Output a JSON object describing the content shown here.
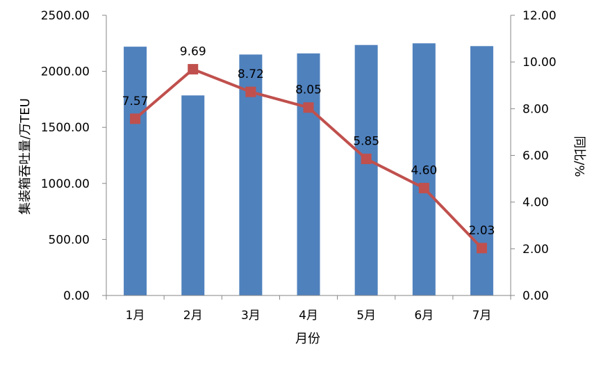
{
  "chart_data": {
    "type": "bar+line",
    "categories": [
      "1月",
      "2月",
      "3月",
      "4月",
      "5月",
      "6月",
      "7月"
    ],
    "series": [
      {
        "type": "bar",
        "axis": "left",
        "color": "#4F81BD",
        "values": [
          2220,
          1785,
          2150,
          2160,
          2235,
          2250,
          2225
        ]
      },
      {
        "type": "line",
        "axis": "right",
        "color": "#C0504D",
        "marker": "square",
        "values": [
          7.57,
          9.69,
          8.72,
          8.05,
          5.85,
          4.6,
          2.03
        ],
        "data_labels": [
          "7.57",
          "9.69",
          "8.72",
          "8.05",
          "5.85",
          "4.60",
          "2.03"
        ]
      }
    ],
    "xlabel": "月份",
    "ylabel_left": "集装箱吞吐量/万TEU",
    "ylabel_right": "同比/%",
    "ylim_left": [
      0,
      2500
    ],
    "ylim_right": [
      0,
      12
    ],
    "yticks_left": [
      "0.00",
      "500.00",
      "1000.00",
      "1500.00",
      "2000.00",
      "2500.00"
    ],
    "yticks_right": [
      "0.00",
      "2.00",
      "4.00",
      "6.00",
      "8.00",
      "10.00",
      "12.00"
    ],
    "grid": false,
    "legend": "none"
  }
}
